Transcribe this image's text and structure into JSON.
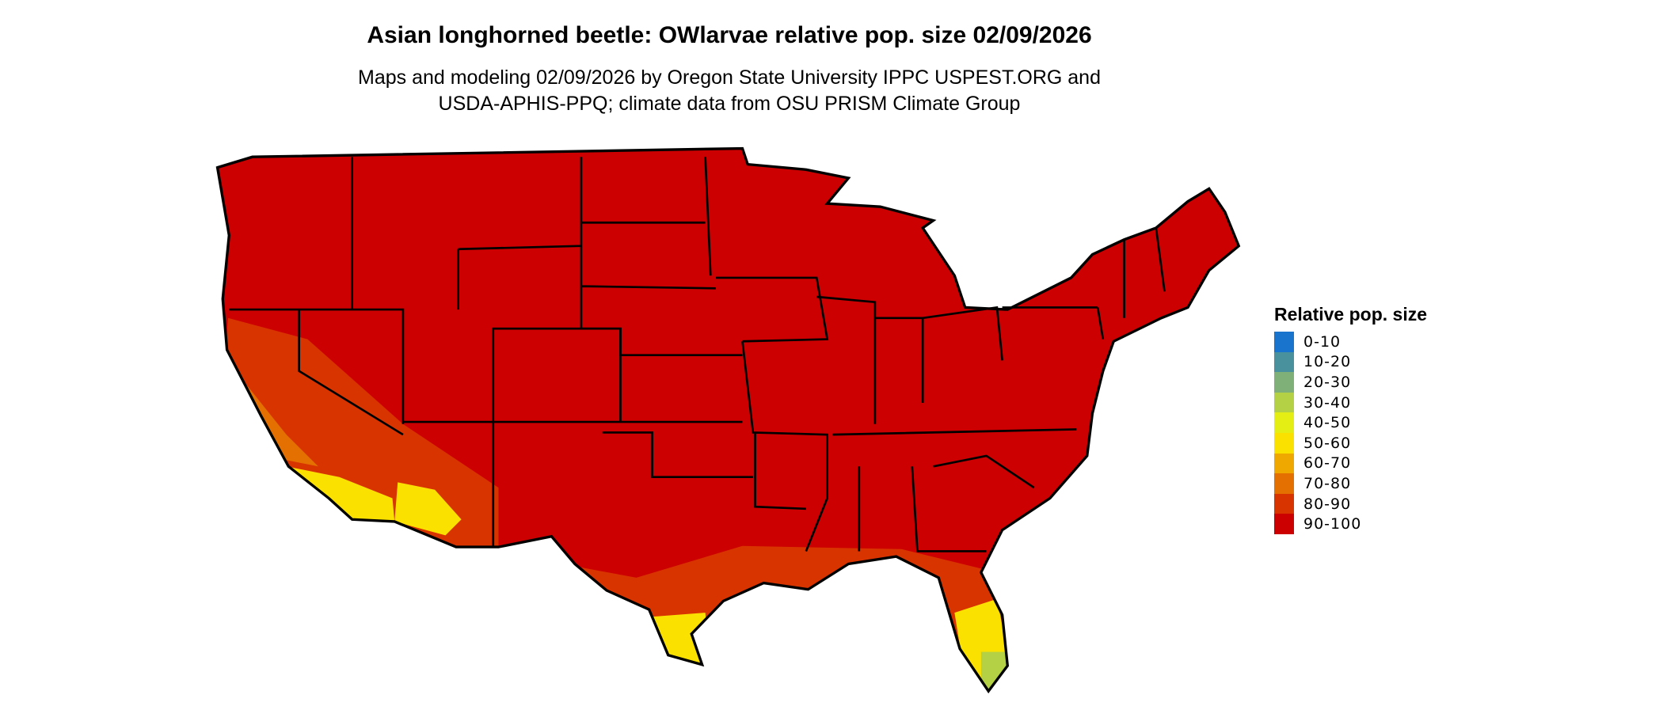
{
  "title": "Asian longhorned beetle: OWlarvae relative pop. size 02/09/2026",
  "subtitle_lines": [
    "Maps and modeling 02/09/2026 by Oregon State University IPPC USPEST.ORG and",
    "USDA-APHIS-PPQ; climate data from OSU PRISM Climate Group"
  ],
  "legend": {
    "title": "Relative pop. size",
    "items": [
      {
        "label": "0-10",
        "color": "#1874CD"
      },
      {
        "label": "10-20",
        "color": "#4A919E"
      },
      {
        "label": "20-30",
        "color": "#7FB077"
      },
      {
        "label": "30-40",
        "color": "#B4D145"
      },
      {
        "label": "40-50",
        "color": "#E5EE14"
      },
      {
        "label": "50-60",
        "color": "#FAE100"
      },
      {
        "label": "60-70",
        "color": "#EFA800"
      },
      {
        "label": "70-80",
        "color": "#E37000"
      },
      {
        "label": "80-90",
        "color": "#D83400"
      },
      {
        "label": "90-100",
        "color": "#CC0000"
      }
    ]
  }
}
